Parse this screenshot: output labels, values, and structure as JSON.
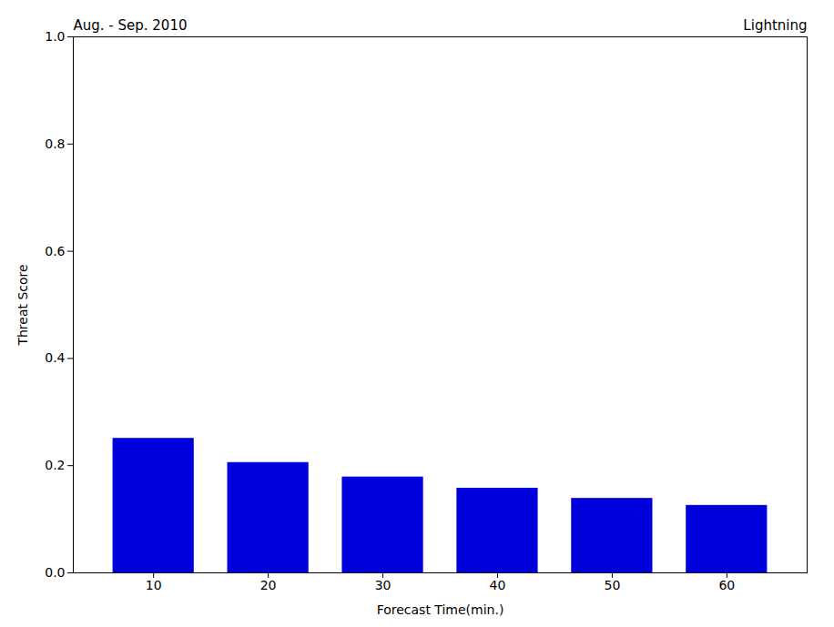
{
  "chart_data": {
    "type": "bar",
    "x": [
      10,
      20,
      30,
      40,
      50,
      60
    ],
    "values": [
      0.25,
      0.205,
      0.178,
      0.157,
      0.138,
      0.125
    ],
    "color": "#0000dd",
    "xlabel": "Forecast Time(min.)",
    "ylabel": "Threat Score",
    "xlim": [
      3,
      67
    ],
    "xticks": [
      10,
      20,
      30,
      40,
      50,
      60
    ],
    "ylim": [
      0.0,
      1.0
    ],
    "yticks": [
      {
        "value": 0.0,
        "label": "0.0"
      },
      0.2,
      0.4,
      0.6,
      0.8,
      {
        "value": 1.0,
        "label": "1.0"
      }
    ],
    "annotations": [
      "Aug. - Sep. 2010",
      "Lightning"
    ],
    "grid": false
  }
}
